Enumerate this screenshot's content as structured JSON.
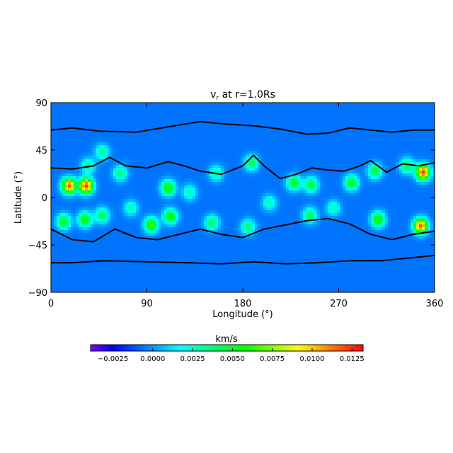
{
  "chart_data": {
    "type": "heatmap",
    "title": {
      "main": "v",
      "sub": "r",
      "rest": " at r=1.0Rs"
    },
    "xlabel": "Longitude (°)",
    "ylabel": "Latitude (°)",
    "xlim": [
      0,
      360
    ],
    "ylim": [
      -90,
      90
    ],
    "xticks": [
      0,
      90,
      180,
      270,
      360
    ],
    "xtick_labels": [
      "0",
      "90",
      "180",
      "270",
      "360"
    ],
    "yticks": [
      90,
      45,
      0,
      -45,
      -90
    ],
    "ytick_labels": [
      "90",
      "45",
      "0",
      "−45",
      "−90"
    ],
    "colorbar": {
      "label": "km/s",
      "range": [
        -0.0039,
        0.0132
      ],
      "ticks": [
        -0.0025,
        0,
        0.0025,
        0.005,
        0.0075,
        0.01,
        0.0125
      ],
      "tick_labels": [
        "−0.0025",
        "0.0000",
        "0.0025",
        "0.0050",
        "0.0075",
        "0.0100",
        "0.0125"
      ],
      "colormap": [
        {
          "value": -0.0039,
          "color": "#8000ff"
        },
        {
          "value": -0.0025,
          "color": "#0000ff"
        },
        {
          "value": 0.0017,
          "color": "#00ffff"
        },
        {
          "value": 0.0057,
          "color": "#00ff00"
        },
        {
          "value": 0.0091,
          "color": "#ffff00"
        },
        {
          "value": 0.0132,
          "color": "#ff0000"
        }
      ]
    },
    "background_value": -0.0006,
    "peaks": [
      {
        "lon": 17,
        "lat": 11,
        "value": 0.012
      },
      {
        "lon": 33,
        "lat": 11,
        "value": 0.0125
      },
      {
        "lon": 110,
        "lat": 9,
        "value": 0.0065
      },
      {
        "lon": 349,
        "lat": 24,
        "value": 0.0125
      },
      {
        "lon": 347,
        "lat": -27,
        "value": 0.012
      },
      {
        "lon": 94,
        "lat": -26,
        "value": 0.0065
      },
      {
        "lon": 112,
        "lat": -18,
        "value": 0.006
      },
      {
        "lon": 32,
        "lat": -21,
        "value": 0.006
      },
      {
        "lon": 12,
        "lat": -23,
        "value": 0.0055
      },
      {
        "lon": 48,
        "lat": -17,
        "value": 0.0045
      },
      {
        "lon": 188,
        "lat": 33,
        "value": 0.0045
      },
      {
        "lon": 228,
        "lat": 14,
        "value": 0.0055
      },
      {
        "lon": 244,
        "lat": 12,
        "value": 0.005
      },
      {
        "lon": 282,
        "lat": 14,
        "value": 0.0055
      },
      {
        "lon": 307,
        "lat": -21,
        "value": 0.0065
      },
      {
        "lon": 304,
        "lat": 25,
        "value": 0.005
      },
      {
        "lon": 334,
        "lat": 30,
        "value": 0.0045
      },
      {
        "lon": 151,
        "lat": -24,
        "value": 0.0045
      },
      {
        "lon": 185,
        "lat": -28,
        "value": 0.004
      },
      {
        "lon": 65,
        "lat": 23,
        "value": 0.004
      },
      {
        "lon": 243,
        "lat": -17,
        "value": 0.0045
      },
      {
        "lon": 35,
        "lat": 30,
        "value": 0.0035
      },
      {
        "lon": 48,
        "lat": 43,
        "value": 0.0035
      },
      {
        "lon": 155,
        "lat": 23,
        "value": 0.0035
      },
      {
        "lon": 205,
        "lat": -5,
        "value": 0.003
      },
      {
        "lon": 265,
        "lat": -10,
        "value": 0.003
      },
      {
        "lon": 130,
        "lat": 5,
        "value": 0.003
      },
      {
        "lon": 75,
        "lat": -10,
        "value": 0.003
      }
    ],
    "contours": [
      {
        "level": 0,
        "points": [
          [
            0,
            64
          ],
          [
            20,
            66
          ],
          [
            45,
            63
          ],
          [
            80,
            62
          ],
          [
            110,
            67
          ],
          [
            140,
            72
          ],
          [
            160,
            70
          ],
          [
            190,
            68
          ],
          [
            215,
            65
          ],
          [
            240,
            60
          ],
          [
            260,
            61
          ],
          [
            280,
            66
          ],
          [
            300,
            64
          ],
          [
            320,
            62
          ],
          [
            340,
            64
          ],
          [
            360,
            64
          ]
        ]
      },
      {
        "level": 0,
        "points": [
          [
            0,
            -62
          ],
          [
            20,
            -62
          ],
          [
            50,
            -60
          ],
          [
            90,
            -61
          ],
          [
            130,
            -62
          ],
          [
            160,
            -63
          ],
          [
            190,
            -61
          ],
          [
            220,
            -63
          ],
          [
            250,
            -62
          ],
          [
            280,
            -60
          ],
          [
            310,
            -60
          ],
          [
            340,
            -57
          ],
          [
            360,
            -55
          ]
        ]
      },
      {
        "level": 0,
        "points": [
          [
            0,
            28
          ],
          [
            20,
            27
          ],
          [
            40,
            30
          ],
          [
            55,
            38
          ],
          [
            70,
            30
          ],
          [
            90,
            28
          ],
          [
            110,
            34
          ],
          [
            125,
            30
          ],
          [
            140,
            25
          ],
          [
            160,
            22
          ],
          [
            180,
            30
          ],
          [
            190,
            40
          ],
          [
            200,
            30
          ],
          [
            215,
            18
          ],
          [
            230,
            22
          ],
          [
            245,
            28
          ],
          [
            260,
            26
          ],
          [
            275,
            25
          ],
          [
            290,
            30
          ],
          [
            300,
            35
          ],
          [
            315,
            24
          ],
          [
            330,
            32
          ],
          [
            345,
            30
          ],
          [
            360,
            33
          ]
        ]
      },
      {
        "level": 0,
        "points": [
          [
            0,
            -30
          ],
          [
            20,
            -40
          ],
          [
            40,
            -42
          ],
          [
            60,
            -30
          ],
          [
            80,
            -38
          ],
          [
            100,
            -40
          ],
          [
            120,
            -35
          ],
          [
            140,
            -30
          ],
          [
            160,
            -35
          ],
          [
            180,
            -38
          ],
          [
            200,
            -30
          ],
          [
            220,
            -26
          ],
          [
            240,
            -22
          ],
          [
            260,
            -20
          ],
          [
            280,
            -25
          ],
          [
            300,
            -35
          ],
          [
            320,
            -40
          ],
          [
            340,
            -35
          ],
          [
            360,
            -32
          ]
        ]
      }
    ]
  }
}
